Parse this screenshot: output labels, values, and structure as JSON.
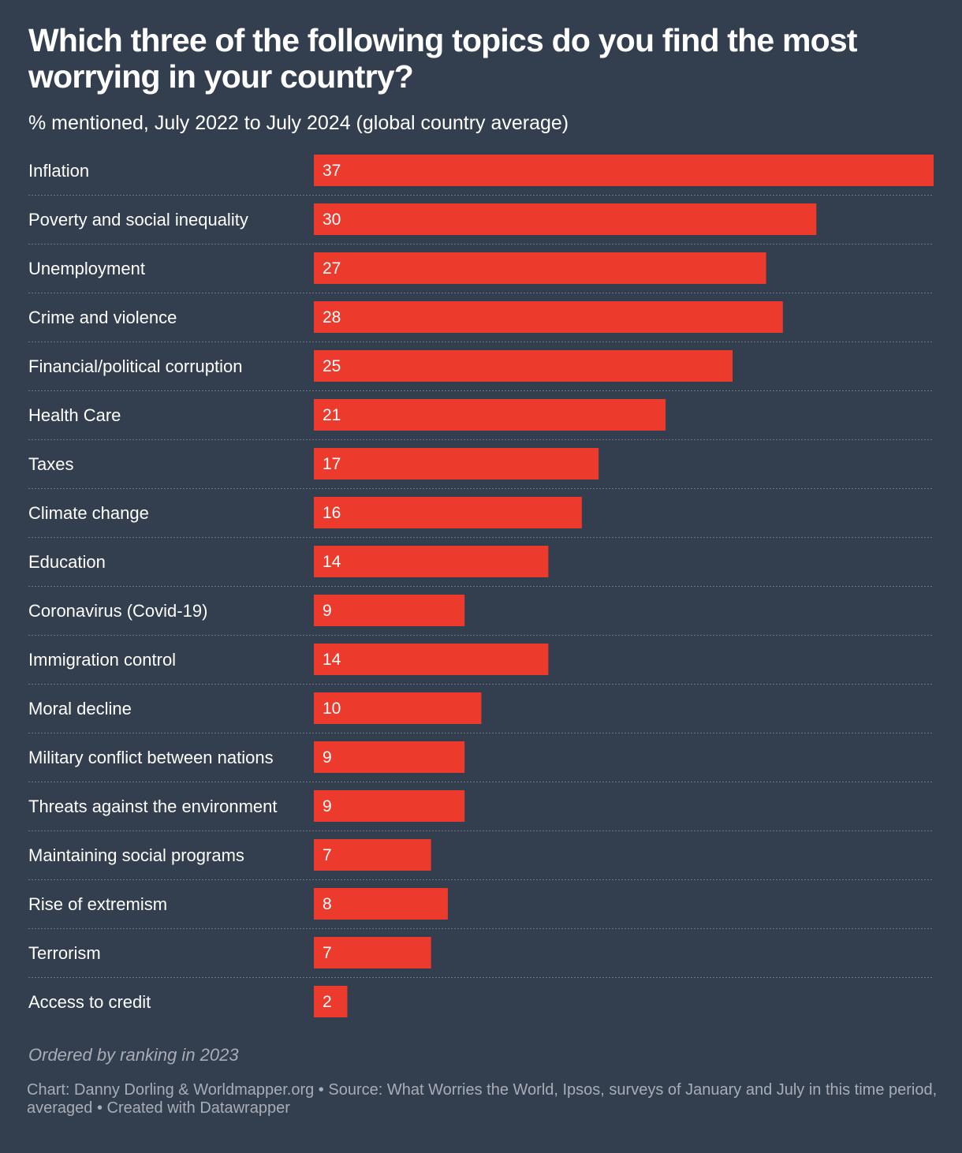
{
  "title": "Which three of the following topics do you find the most worrying in your country?",
  "subtitle": "% mentioned, July 2022 to July 2024 (global country average)",
  "note": "Ordered by ranking in 2023",
  "source": "Chart: Danny Dorling & Worldmapper.org • Source: What Worries the World, Ipsos, surveys of January and July in this time period, averaged • Created with Datawrapper",
  "colors": {
    "background": "#333e4f",
    "bar": "#ec3a2d",
    "text": "#ffffff",
    "muted_text": "#a8adb6",
    "separator": "#6b7482"
  },
  "chart_data": {
    "type": "bar",
    "orientation": "horizontal",
    "categories": [
      "Inflation",
      "Poverty and social inequality",
      "Unemployment",
      "Crime and violence",
      "Financial/political corruption",
      "Health Care",
      "Taxes",
      "Climate change",
      "Education",
      "Coronavirus (Covid-19)",
      "Immigration control",
      "Moral decline",
      "Military conflict between nations",
      "Threats against the environment",
      "Maintaining social programs",
      "Rise of extremism",
      "Terrorism",
      "Access to credit"
    ],
    "values": [
      37,
      30,
      27,
      28,
      25,
      21,
      17,
      16,
      14,
      9,
      14,
      10,
      9,
      9,
      7,
      8,
      7,
      2
    ],
    "xlim": [
      0,
      37
    ],
    "grid": false,
    "legend": "none",
    "data_labels": "inside-bar-start"
  }
}
